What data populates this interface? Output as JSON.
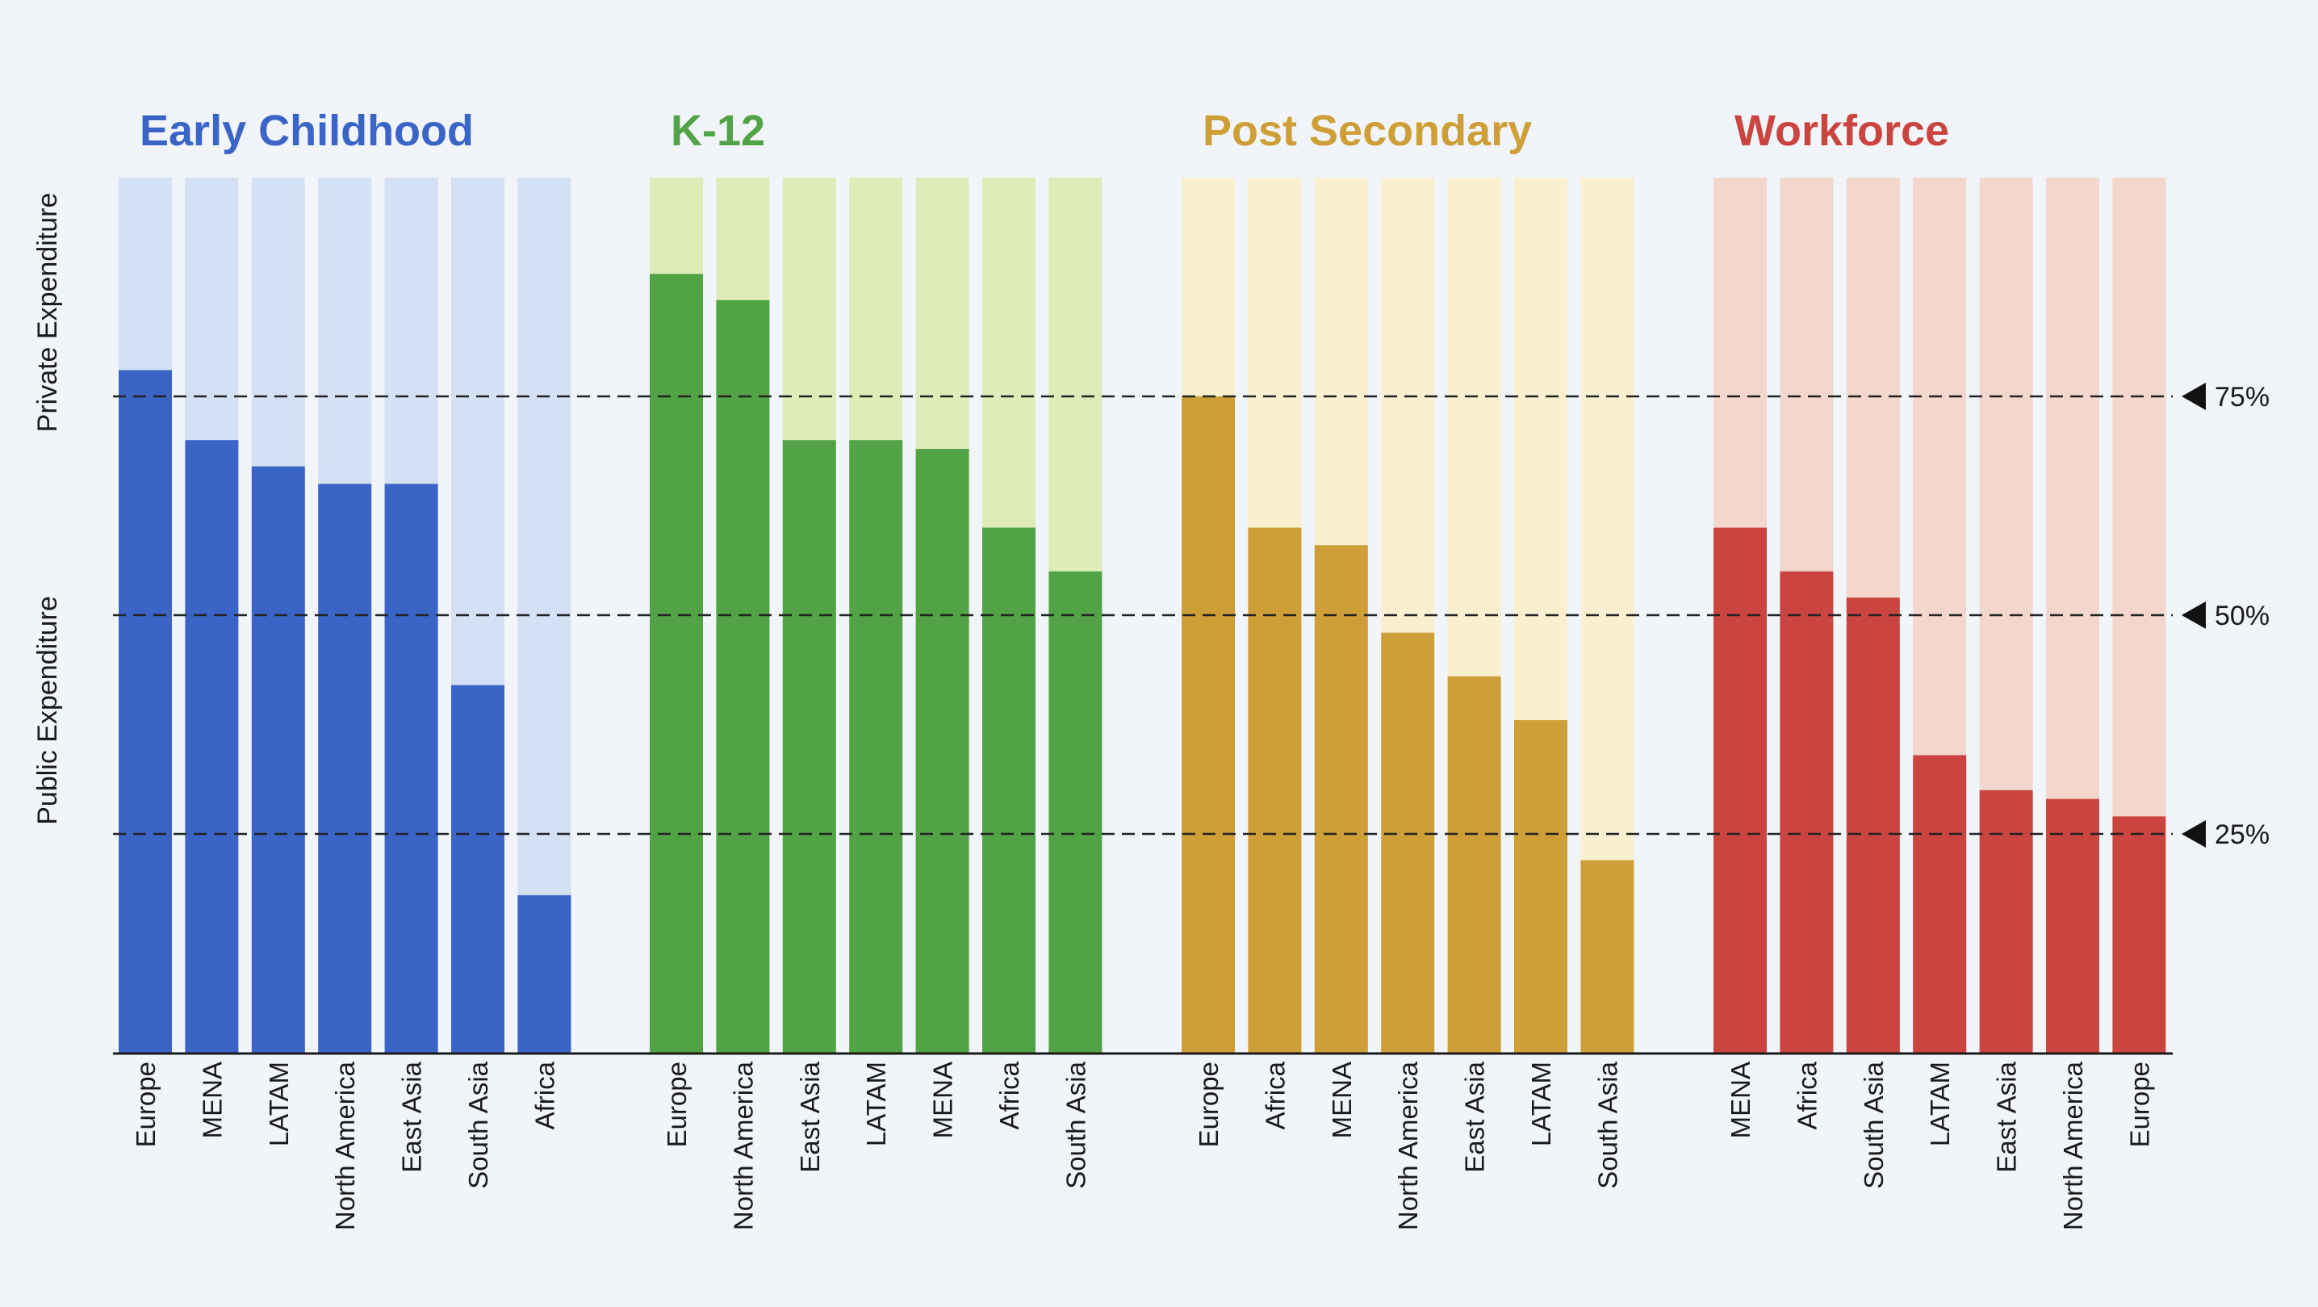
{
  "chart_data": {
    "type": "bar",
    "stacked_share": true,
    "ylim": [
      0,
      100
    ],
    "axis_labels": {
      "private": "Private Expenditure",
      "public": "Public Expenditure"
    },
    "reference_lines": [
      {
        "value": 75,
        "label": "75%"
      },
      {
        "value": 50,
        "label": "50%"
      },
      {
        "value": 25,
        "label": "25%"
      }
    ],
    "groups": [
      {
        "title": "Early Childhood",
        "color": "#3a64c6",
        "light_color": "#d4e0f4",
        "categories": [
          "Europe",
          "MENA",
          "LATAM",
          "North America",
          "East Asia",
          "South Asia",
          "Africa"
        ],
        "values": [
          78,
          70,
          67,
          65,
          65,
          42,
          18
        ]
      },
      {
        "title": "K-12",
        "color": "#52a346",
        "light_color": "#dfebb8",
        "categories": [
          "Europe",
          "North America",
          "East Asia",
          "LATAM",
          "MENA",
          "Africa",
          "South Asia"
        ],
        "values": [
          89,
          86,
          70,
          70,
          69,
          60,
          55
        ]
      },
      {
        "title": "Post Secondary",
        "color": "#cf9f37",
        "light_color": "#faf0cf",
        "categories": [
          "Europe",
          "Africa",
          "MENA",
          "North America",
          "East Asia",
          "LATAM",
          "South Asia"
        ],
        "values": [
          75,
          60,
          58,
          48,
          43,
          38,
          22
        ]
      },
      {
        "title": "Workforce",
        "color": "#cb4540",
        "light_color": "#f3d6cc",
        "categories": [
          "MENA",
          "Africa",
          "South Asia",
          "LATAM",
          "East Asia",
          "North America",
          "Europe"
        ],
        "values": [
          60,
          55,
          52,
          34,
          30,
          29,
          27
        ]
      }
    ]
  }
}
